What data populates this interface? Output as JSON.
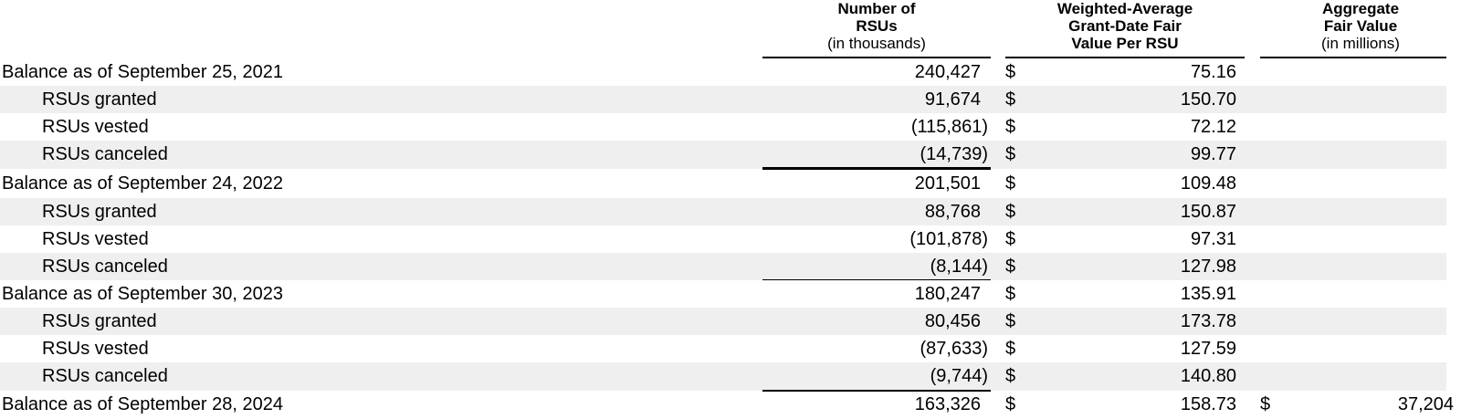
{
  "headers": {
    "rsus": {
      "line1": "Number of",
      "line2": "RSUs",
      "unit": "(in thousands)"
    },
    "wafv": {
      "line1": "Weighted-Average",
      "line2": "Grant-Date Fair",
      "line3": "Value Per RSU"
    },
    "aggregate": {
      "line1": "Aggregate",
      "line2": "Fair Value",
      "unit": "(in millions)"
    }
  },
  "rows": [
    {
      "label": "Balance as of September 25, 2021",
      "rsus": "240,427",
      "currency": "$",
      "price": "75.16"
    },
    {
      "label": "RSUs granted",
      "rsus": "91,674",
      "currency": "$",
      "price": "150.70"
    },
    {
      "label": "RSUs vested",
      "rsus": "(115,861)",
      "currency": "$",
      "price": "72.12"
    },
    {
      "label": "RSUs canceled",
      "rsus": "(14,739)",
      "currency": "$",
      "price": "99.77"
    },
    {
      "label": "Balance as of September 24, 2022",
      "rsus": "201,501",
      "currency": "$",
      "price": "109.48"
    },
    {
      "label": "RSUs granted",
      "rsus": "88,768",
      "currency": "$",
      "price": "150.87"
    },
    {
      "label": "RSUs vested",
      "rsus": "(101,878)",
      "currency": "$",
      "price": "97.31"
    },
    {
      "label": "RSUs canceled",
      "rsus": "(8,144)",
      "currency": "$",
      "price": "127.98"
    },
    {
      "label": "Balance as of September 30, 2023",
      "rsus": "180,247",
      "currency": "$",
      "price": "135.91"
    },
    {
      "label": "RSUs granted",
      "rsus": "80,456",
      "currency": "$",
      "price": "173.78"
    },
    {
      "label": "RSUs vested",
      "rsus": "(87,633)",
      "currency": "$",
      "price": "127.59"
    },
    {
      "label": "RSUs canceled",
      "rsus": "(9,744)",
      "currency": "$",
      "price": "140.80"
    },
    {
      "label": "Balance as of September 28, 2024",
      "rsus": "163,326",
      "currency": "$",
      "price": "158.73",
      "agg_currency": "$",
      "aggregate": "37,204"
    }
  ]
}
